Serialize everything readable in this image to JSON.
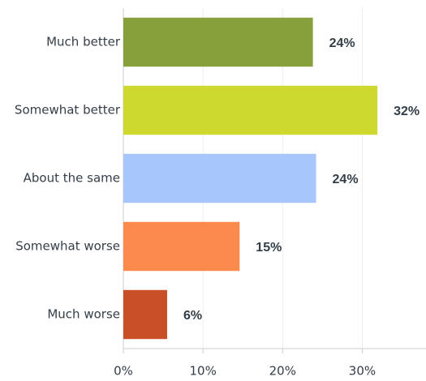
{
  "chart_data": {
    "type": "hbar",
    "categories": [
      "Much better",
      "Somewhat better",
      "About the same",
      "Somewhat worse",
      "Much worse"
    ],
    "values": [
      23.8,
      31.9,
      24.2,
      14.6,
      5.5
    ],
    "value_labels": [
      "24%",
      "32%",
      "24%",
      "15%",
      "6%"
    ],
    "colors": [
      "#87a03c",
      "#cdd92e",
      "#a7c6fb",
      "#fd8a4d",
      "#c84f26"
    ],
    "xlim": [
      0,
      38
    ],
    "xticks": [
      {
        "value": 0,
        "label": "0%"
      },
      {
        "value": 10,
        "label": "10%"
      },
      {
        "value": 20,
        "label": "20%"
      },
      {
        "value": 30,
        "label": "30%"
      }
    ],
    "grid": true
  }
}
